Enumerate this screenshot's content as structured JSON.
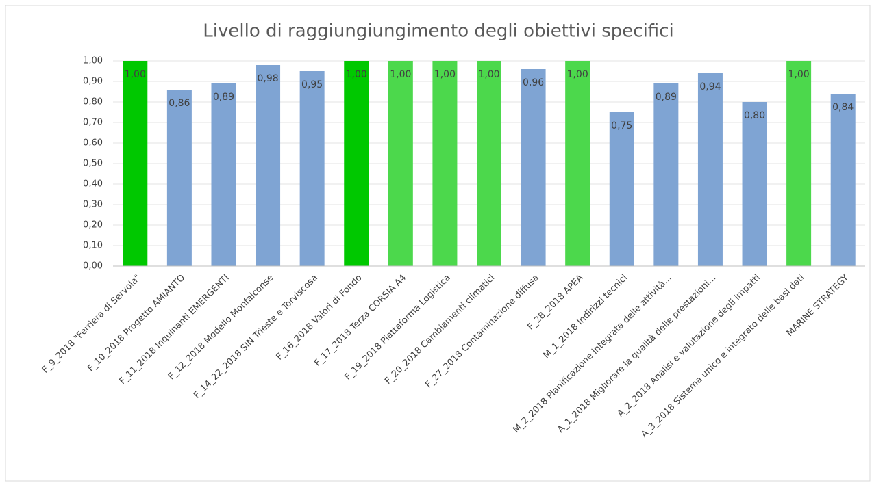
{
  "chart_data": {
    "type": "bar",
    "title": "Livello di raggiungiungimento degli obiettivi specifici",
    "categories": [
      "F_9_2018 \"Ferriera di Servola\"",
      "F_10_2018 Progetto AMIANTO",
      "F_11_2018 Inquinanti EMERGENTI",
      "F_12_2018 Modello Monfalconse",
      "F_14_22_2018 SIN Trieste e Torviscosa",
      "F_16_2018 Valori di Fondo",
      "F_17_2018 Terza CORSIA A4",
      "F_19_2018 Piattaforma Logistica",
      "F_20_2018 Cambiamenti climatici",
      "F_27_2018 Contaminazione diffusa",
      "F_28_2018 APEA",
      "M_1_2018 Indirizzi tecnici",
      "M_2_2018 Pianificazione integrata delle attività...",
      "A_1_2018 Migliorare la qualità delle prestazioni...",
      "A_2_2018 Analisi e valutazione degli impatti",
      "A_3_2018 Sistema unico e integrato delle basi dati",
      "MARINE STRATEGY"
    ],
    "values": [
      1.0,
      0.86,
      0.89,
      0.98,
      0.95,
      1.0,
      1.0,
      1.0,
      1.0,
      0.96,
      1.0,
      0.75,
      0.89,
      0.94,
      0.8,
      1.0,
      0.84
    ],
    "value_labels": [
      "1,00",
      "0,86",
      "0,89",
      "0,98",
      "0,95",
      "1,00",
      "1,00",
      "1,00",
      "1,00",
      "0,96",
      "1,00",
      "0,75",
      "0,89",
      "0,94",
      "0,80",
      "1,00",
      "0,84"
    ],
    "colors": [
      "#00c800",
      "#7fa4d3",
      "#7fa4d3",
      "#7fa4d3",
      "#7fa4d3",
      "#00c800",
      "#4cd84c",
      "#4cd84c",
      "#4cd84c",
      "#7fa4d3",
      "#4cd84c",
      "#7fa4d3",
      "#7fa4d3",
      "#7fa4d3",
      "#7fa4d3",
      "#4cd84c",
      "#7fa4d3"
    ],
    "ylim": [
      0,
      1
    ],
    "yticks": [
      {
        "value": 0,
        "label": "0,00"
      },
      {
        "value": 0.1,
        "label": "0,10"
      },
      {
        "value": 0.2,
        "label": "0,20"
      },
      {
        "value": 0.3,
        "label": "0,30"
      },
      {
        "value": 0.4,
        "label": "0,40"
      },
      {
        "value": 0.5,
        "label": "0,50"
      },
      {
        "value": 0.6,
        "label": "0,60"
      },
      {
        "value": 0.7,
        "label": "0,70"
      },
      {
        "value": 0.8,
        "label": "0,80"
      },
      {
        "value": 0.9,
        "label": "0,90"
      },
      {
        "value": 1,
        "label": "1,00"
      }
    ],
    "grid": true
  }
}
